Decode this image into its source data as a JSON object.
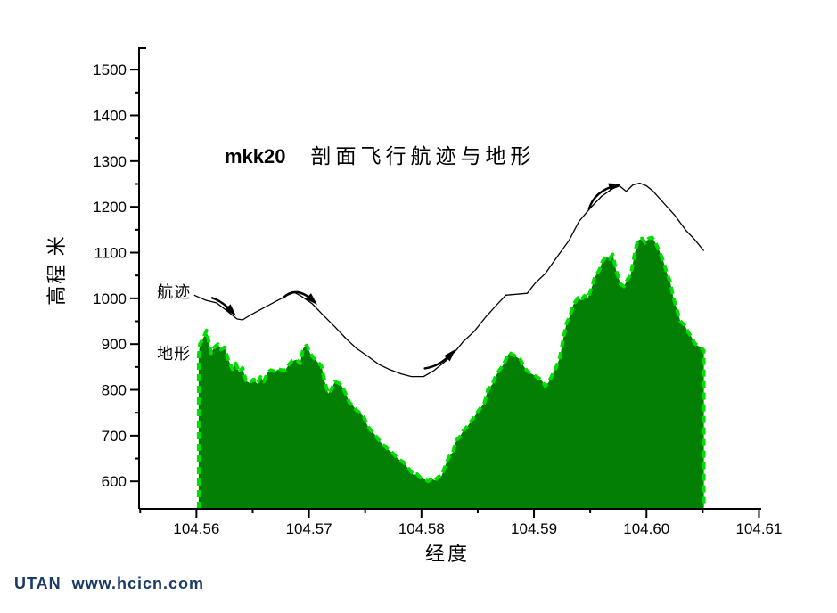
{
  "page": {
    "background": "#ffffff",
    "footer": {
      "text": "UTAN  www.hcicn.com",
      "color": "#1a3a68"
    }
  },
  "chart_data": {
    "type": "area",
    "title": {
      "prefix": "mkk20",
      "text": "剖面飞行航迹与地形"
    },
    "xlabel": "经度",
    "ylabel": "高程 米",
    "xlim": [
      104.5549,
      104.6102
    ],
    "ylim": [
      540,
      1549
    ],
    "grid": false,
    "x_major_ticks": [
      104.56,
      104.57,
      104.58,
      104.59,
      104.6,
      104.61
    ],
    "x_tick_labels": [
      "104.56",
      "104.57",
      "104.58",
      "104.59",
      "104.60",
      "104.61"
    ],
    "x_minor_ticks": [
      104.555,
      104.565,
      104.575,
      104.585,
      104.595,
      104.605
    ],
    "y_major_ticks": [
      600,
      700,
      800,
      900,
      1000,
      1100,
      1200,
      1300,
      1400,
      1500
    ],
    "y_tick_labels": [
      "600",
      "700",
      "800",
      "900",
      "1000",
      "1100",
      "1200",
      "1300",
      "1400",
      "1500"
    ],
    "y_minor_ticks": [
      650,
      750,
      850,
      950,
      1050,
      1150,
      1250,
      1350,
      1450
    ],
    "colors": {
      "terrain_fill": "#038003",
      "terrain_outline": "#00df00",
      "trajectory": "#000000",
      "axis": "#000000"
    },
    "annotations": {
      "trajectory_label": {
        "text": "航迹",
        "x": 104.558,
        "y": 1016
      },
      "terrain_label": {
        "text": "地形",
        "x": 104.558,
        "y": 880
      }
    },
    "arrows": [
      {
        "tail": [
          104.5614,
          1001
        ],
        "ctrl": [
          104.5623,
          994
        ],
        "head": [
          104.5632,
          970
        ]
      },
      {
        "tail": [
          104.5677,
          1001
        ],
        "ctrl": [
          104.5689,
          1029
        ],
        "head": [
          104.5704,
          994
        ]
      },
      {
        "tail": [
          104.5803,
          847
        ],
        "ctrl": [
          104.5816,
          851
        ],
        "head": [
          104.5827,
          880
        ]
      },
      {
        "tail": [
          104.5949,
          1196
        ],
        "ctrl": [
          104.5954,
          1235
        ],
        "head": [
          104.5973,
          1247
        ]
      }
    ],
    "series": [
      {
        "name": "地形",
        "type": "area",
        "points": [
          [
            104.5602,
            875
          ],
          [
            104.5603,
            900
          ],
          [
            104.5606,
            912
          ],
          [
            104.5609,
            930
          ],
          [
            104.5611,
            905
          ],
          [
            104.5613,
            880
          ],
          [
            104.5616,
            893
          ],
          [
            104.5619,
            900
          ],
          [
            104.5622,
            888
          ],
          [
            104.5625,
            893
          ],
          [
            104.5628,
            868
          ],
          [
            104.5632,
            845
          ],
          [
            104.5635,
            858
          ],
          [
            104.5638,
            838
          ],
          [
            104.5641,
            848
          ],
          [
            104.5644,
            820
          ],
          [
            104.5647,
            815
          ],
          [
            104.5651,
            823
          ],
          [
            104.5654,
            813
          ],
          [
            104.5657,
            828
          ],
          [
            104.566,
            818
          ],
          [
            104.5663,
            837
          ],
          [
            104.5666,
            843
          ],
          [
            104.567,
            840
          ],
          [
            104.5673,
            845
          ],
          [
            104.5676,
            843
          ],
          [
            104.5679,
            843
          ],
          [
            104.5682,
            855
          ],
          [
            104.5685,
            863
          ],
          [
            104.5689,
            866
          ],
          [
            104.5692,
            857
          ],
          [
            104.5695,
            891
          ],
          [
            104.5698,
            897
          ],
          [
            104.5701,
            880
          ],
          [
            104.5704,
            870
          ],
          [
            104.5708,
            860
          ],
          [
            104.5711,
            853
          ],
          [
            104.5714,
            818
          ],
          [
            104.5717,
            792
          ],
          [
            104.572,
            800
          ],
          [
            104.5723,
            818
          ],
          [
            104.5727,
            814
          ],
          [
            104.573,
            805
          ],
          [
            104.5733,
            790
          ],
          [
            104.5736,
            772
          ],
          [
            104.5739,
            766
          ],
          [
            104.5742,
            756
          ],
          [
            104.5746,
            748
          ],
          [
            104.5749,
            740
          ],
          [
            104.5752,
            722
          ],
          [
            104.5755,
            712
          ],
          [
            104.5758,
            704
          ],
          [
            104.5761,
            694
          ],
          [
            104.5765,
            682
          ],
          [
            104.5768,
            676
          ],
          [
            104.5771,
            668
          ],
          [
            104.5774,
            663
          ],
          [
            104.5777,
            655
          ],
          [
            104.578,
            648
          ],
          [
            104.5784,
            642
          ],
          [
            104.5787,
            632
          ],
          [
            104.579,
            624
          ],
          [
            104.5793,
            614
          ],
          [
            104.5796,
            616
          ],
          [
            104.5799,
            608
          ],
          [
            104.5803,
            604
          ],
          [
            104.5806,
            600
          ],
          [
            104.5809,
            606
          ],
          [
            104.5812,
            602
          ],
          [
            104.5815,
            610
          ],
          [
            104.5818,
            612
          ],
          [
            104.5822,
            640
          ],
          [
            104.5825,
            656
          ],
          [
            104.5828,
            664
          ],
          [
            104.5831,
            690
          ],
          [
            104.5834,
            697
          ],
          [
            104.5837,
            710
          ],
          [
            104.5841,
            721
          ],
          [
            104.5844,
            731
          ],
          [
            104.5847,
            741
          ],
          [
            104.585,
            752
          ],
          [
            104.5853,
            762
          ],
          [
            104.5856,
            772
          ],
          [
            104.5859,
            800
          ],
          [
            104.5863,
            812
          ],
          [
            104.5866,
            830
          ],
          [
            104.5869,
            842
          ],
          [
            104.5872,
            852
          ],
          [
            104.5875,
            866
          ],
          [
            104.5878,
            881
          ],
          [
            104.5882,
            876
          ],
          [
            104.5885,
            871
          ],
          [
            104.5888,
            866
          ],
          [
            104.5891,
            851
          ],
          [
            104.5894,
            841
          ],
          [
            104.5897,
            836
          ],
          [
            104.5901,
            831
          ],
          [
            104.5904,
            826
          ],
          [
            104.5907,
            820
          ],
          [
            104.591,
            808
          ],
          [
            104.5913,
            816
          ],
          [
            104.5916,
            831
          ],
          [
            104.592,
            851
          ],
          [
            104.5923,
            871
          ],
          [
            104.5926,
            911
          ],
          [
            104.5929,
            946
          ],
          [
            104.5932,
            961
          ],
          [
            104.5935,
            986
          ],
          [
            104.5939,
            1001
          ],
          [
            104.5942,
            996
          ],
          [
            104.5945,
            1006
          ],
          [
            104.5948,
            1001
          ],
          [
            104.5951,
            1021
          ],
          [
            104.5954,
            1046
          ],
          [
            104.5958,
            1061
          ],
          [
            104.5961,
            1081
          ],
          [
            104.5964,
            1091
          ],
          [
            104.5967,
            1086
          ],
          [
            104.597,
            1096
          ],
          [
            104.5973,
            1061
          ],
          [
            104.5977,
            1031
          ],
          [
            104.598,
            1026
          ],
          [
            104.5983,
            1041
          ],
          [
            104.5986,
            1051
          ],
          [
            104.5989,
            1091
          ],
          [
            104.5992,
            1126
          ],
          [
            104.5996,
            1131
          ],
          [
            104.5999,
            1121
          ],
          [
            104.6002,
            1131
          ],
          [
            104.6005,
            1133
          ],
          [
            104.6008,
            1121
          ],
          [
            104.6011,
            1106
          ],
          [
            104.6015,
            1081
          ],
          [
            104.6018,
            1056
          ],
          [
            104.6021,
            1036
          ],
          [
            104.6024,
            1001
          ],
          [
            104.6027,
            976
          ],
          [
            104.603,
            951
          ],
          [
            104.6034,
            941
          ],
          [
            104.6037,
            926
          ],
          [
            104.604,
            916
          ],
          [
            104.6043,
            901
          ],
          [
            104.6046,
            896
          ],
          [
            104.6049,
            891
          ],
          [
            104.6051,
            886
          ]
        ]
      },
      {
        "name": "航迹",
        "type": "line",
        "points": [
          [
            104.5598,
            1007
          ],
          [
            104.5608,
            996
          ],
          [
            104.5618,
            990
          ],
          [
            104.5628,
            971
          ],
          [
            104.5636,
            955
          ],
          [
            104.5641,
            953
          ],
          [
            104.5649,
            965
          ],
          [
            104.5659,
            978
          ],
          [
            104.5671,
            994
          ],
          [
            104.5681,
            1007
          ],
          [
            104.5687,
            1013
          ],
          [
            104.5693,
            1005
          ],
          [
            104.5703,
            988
          ],
          [
            104.5712,
            965
          ],
          [
            104.5723,
            938
          ],
          [
            104.5733,
            912
          ],
          [
            104.5742,
            891
          ],
          [
            104.5752,
            874
          ],
          [
            104.5762,
            856
          ],
          [
            104.5772,
            844
          ],
          [
            104.5782,
            835
          ],
          [
            104.5791,
            829
          ],
          [
            104.5802,
            829
          ],
          [
            104.5811,
            842
          ],
          [
            104.5822,
            864
          ],
          [
            104.5831,
            887
          ],
          [
            104.5837,
            905
          ],
          [
            104.5847,
            928
          ],
          [
            104.5857,
            959
          ],
          [
            104.5867,
            986
          ],
          [
            104.5875,
            1007
          ],
          [
            104.5885,
            1009
          ],
          [
            104.5894,
            1011
          ],
          [
            104.5901,
            1033
          ],
          [
            104.591,
            1054
          ],
          [
            104.592,
            1089
          ],
          [
            104.5931,
            1126
          ],
          [
            104.594,
            1168
          ],
          [
            104.595,
            1197
          ],
          [
            104.596,
            1223
          ],
          [
            104.597,
            1240
          ],
          [
            104.5976,
            1246
          ],
          [
            104.5982,
            1234
          ],
          [
            104.5988,
            1248
          ],
          [
            104.5994,
            1252
          ],
          [
            104.6,
            1246
          ],
          [
            104.6006,
            1234
          ],
          [
            104.6015,
            1209
          ],
          [
            104.6025,
            1182
          ],
          [
            104.6035,
            1149
          ],
          [
            104.6043,
            1128
          ],
          [
            104.6051,
            1104
          ]
        ]
      }
    ]
  }
}
